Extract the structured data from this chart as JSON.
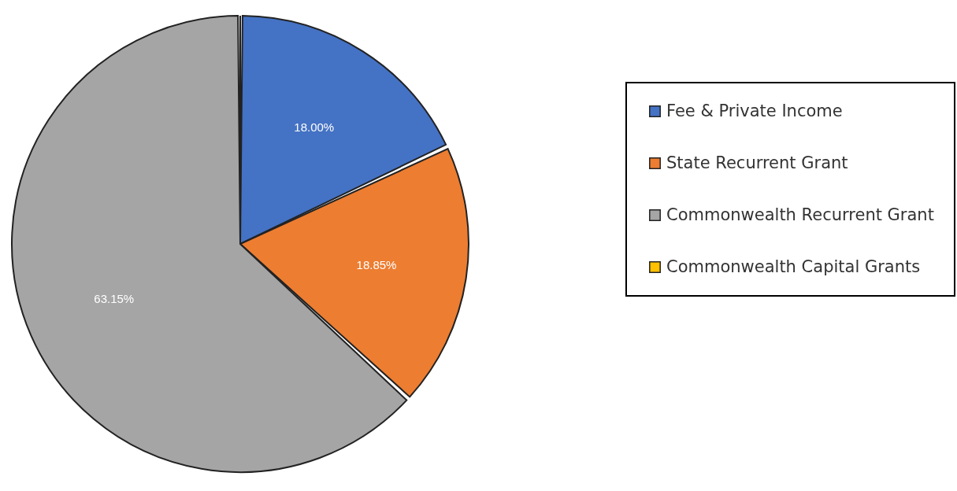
{
  "chart_data": {
    "type": "pie",
    "categories": [
      "Fee & Private Income",
      "State Recurrent Grant",
      "Commonwealth Recurrent Grant",
      "Commonwealth Capital Grants"
    ],
    "values": [
      18.0,
      18.85,
      63.15,
      0
    ],
    "colors": [
      "#4472c4",
      "#ed7d31",
      "#a5a5a5",
      "#ffc000"
    ],
    "value_labels": [
      "18.00%",
      "18.85%",
      "63.15%",
      null
    ],
    "legend": "right"
  }
}
